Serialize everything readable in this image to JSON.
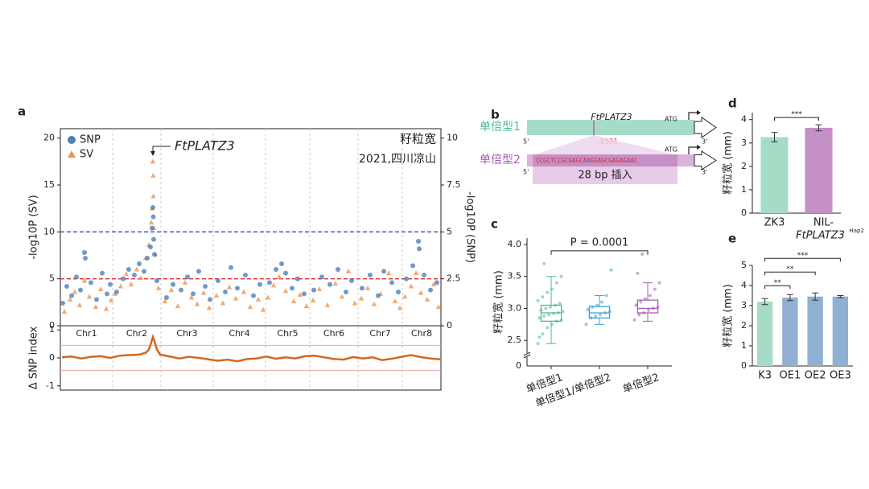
{
  "chart_data": [
    {
      "type": "scatter",
      "panel_label": "a",
      "ylabel": "-log10P (SV)",
      "y2label": "-log10P (SNP)",
      "title": "籽粒宽",
      "subtitle": "2021,四川凉山",
      "annotation": "FtPLATZ3",
      "legend": "upper left",
      "xlim": [
        0,
        473
      ],
      "ylim": [
        0,
        21
      ],
      "yticks": [
        0,
        5,
        10,
        15,
        20
      ],
      "y2lim": [
        0,
        10.5
      ],
      "y2ticks": [
        0,
        2.5,
        5,
        7.5,
        10
      ],
      "categories": [
        "Chr1",
        "Chr2",
        "Chr3",
        "Chr4",
        "Chr5",
        "Chr6",
        "Chr7",
        "Chr8"
      ],
      "category_bounds": [
        0,
        65,
        125,
        190,
        255,
        310,
        370,
        425,
        473
      ],
      "threshold_lines": [
        {
          "value": 10,
          "color": "#2f55a4"
        },
        {
          "value": 5,
          "color": "#e02a2a"
        }
      ],
      "series": [
        {
          "name": "SNP",
          "color": "#4f80bd",
          "marker": "circle",
          "axis": "y2",
          "x": [
            3,
            8,
            14,
            20,
            25,
            30,
            31,
            38,
            45,
            52,
            58,
            62,
            70,
            78,
            85,
            92,
            98,
            104,
            108,
            112,
            114,
            115,
            115.5,
            116,
            117,
            120,
            132,
            140,
            150,
            158,
            165,
            172,
            180,
            186,
            196,
            205,
            212,
            220,
            230,
            240,
            248,
            260,
            268,
            275,
            280,
            288,
            295,
            303,
            315,
            325,
            335,
            345,
            355,
            362,
            375,
            385,
            395,
            402,
            412,
            420,
            430,
            438,
            445,
            446,
            452,
            460,
            468
          ],
          "values": [
            1.2,
            2.1,
            1.6,
            2.6,
            1.9,
            3.9,
            3.6,
            2.3,
            1.4,
            2.8,
            1.7,
            2.2,
            1.8,
            2.5,
            3.0,
            2.7,
            3.3,
            2.9,
            3.6,
            4.2,
            5.2,
            6.3,
            5.8,
            4.6,
            3.8,
            2.4,
            1.5,
            2.2,
            1.9,
            2.6,
            1.7,
            2.9,
            2.1,
            1.4,
            2.4,
            1.8,
            3.1,
            2.0,
            2.7,
            1.6,
            2.2,
            2.3,
            3.0,
            3.3,
            2.8,
            2.0,
            2.5,
            1.7,
            1.9,
            2.6,
            2.2,
            3.0,
            1.8,
            2.4,
            2.0,
            2.7,
            1.6,
            2.9,
            2.3,
            1.8,
            2.5,
            3.2,
            4.5,
            4.1,
            2.7,
            1.9,
            2.3
          ]
        },
        {
          "name": "SV",
          "color": "#ee9552",
          "marker": "triangle",
          "x": [
            5,
            12,
            18,
            24,
            30,
            36,
            44,
            50,
            57,
            63,
            68,
            75,
            82,
            88,
            95,
            100,
            106,
            110,
            113,
            114,
            115,
            115.3,
            115.6,
            116,
            118,
            122,
            130,
            138,
            146,
            155,
            163,
            170,
            178,
            185,
            194,
            202,
            210,
            218,
            228,
            236,
            246,
            252,
            258,
            265,
            272,
            280,
            290,
            298,
            306,
            314,
            322,
            332,
            342,
            350,
            358,
            366,
            374,
            382,
            390,
            398,
            408,
            416,
            422,
            428,
            436,
            442,
            448,
            456,
            464,
            470
          ],
          "values": [
            1.5,
            2.8,
            3.6,
            2.2,
            4.8,
            3.1,
            2.0,
            3.9,
            1.8,
            2.7,
            3.4,
            4.2,
            5.5,
            4.4,
            6.0,
            5.1,
            7.2,
            8.6,
            11.0,
            12.5,
            17.5,
            16.0,
            13.8,
            10.4,
            7.6,
            4.0,
            2.6,
            3.8,
            2.1,
            4.6,
            3.0,
            2.3,
            3.5,
            1.9,
            3.2,
            2.4,
            4.1,
            2.9,
            3.6,
            2.0,
            2.8,
            1.7,
            3.0,
            4.3,
            5.2,
            3.7,
            2.6,
            3.3,
            2.1,
            2.7,
            3.9,
            2.2,
            4.5,
            3.1,
            5.8,
            2.4,
            2.9,
            4.0,
            2.3,
            3.4,
            5.6,
            2.6,
            1.9,
            3.1,
            4.2,
            5.6,
            3.5,
            2.8,
            4.4,
            2.0
          ]
        }
      ]
    },
    {
      "type": "line",
      "ylabel": "Δ SNP index",
      "color": "#d2691e",
      "xlim": [
        0,
        473
      ],
      "ylim": [
        -1.15,
        1.15
      ],
      "yticks": [
        -1,
        0,
        1
      ],
      "threshold_lines": [
        0.45,
        -0.45
      ],
      "x": [
        2,
        14,
        26,
        38,
        50,
        62,
        74,
        86,
        98,
        106,
        110,
        113,
        115,
        117,
        120,
        124,
        136,
        148,
        160,
        172,
        184,
        196,
        208,
        220,
        232,
        244,
        256,
        268,
        280,
        292,
        304,
        316,
        328,
        340,
        352,
        364,
        376,
        388,
        400,
        412,
        424,
        436,
        448,
        460,
        472
      ],
      "values": [
        0.02,
        0.05,
        -0.02,
        0.04,
        0.06,
        0.0,
        0.08,
        0.1,
        0.12,
        0.18,
        0.3,
        0.55,
        0.75,
        0.6,
        0.3,
        0.12,
        0.05,
        -0.02,
        0.04,
        0.0,
        -0.05,
        -0.1,
        -0.06,
        -0.12,
        -0.04,
        -0.02,
        0.05,
        -0.03,
        0.02,
        -0.02,
        0.06,
        0.08,
        0.02,
        -0.04,
        -0.06,
        0.03,
        -0.02,
        0.02,
        -0.08,
        -0.03,
        0.04,
        0.1,
        0.03,
        -0.02,
        -0.05
      ]
    },
    {
      "type": "box",
      "panel_label": "c",
      "ylabel": "籽粒宽 (mm)",
      "annotation": "P = 0.0001",
      "axis_break_label": "0",
      "ylim": [
        2.1,
        4.1
      ],
      "yticks": [
        2.5,
        {
          "value": 3,
          "label": "3.0"
        },
        3.5,
        {
          "value": 4,
          "label": "4.0"
        }
      ],
      "categories": [
        "单倍型1",
        "单倍型1/单倍型2",
        "单倍型2"
      ],
      "colors": [
        "#4dbb8f",
        "#35a4d6",
        "#a55cb5"
      ],
      "boxes": [
        {
          "min": 2.45,
          "q1": 2.8,
          "median": 2.93,
          "q3": 3.05,
          "max": 3.5,
          "points": [
            2.45,
            2.6,
            2.7,
            2.75,
            2.8,
            2.82,
            2.85,
            2.88,
            2.9,
            2.92,
            2.93,
            2.95,
            2.97,
            3.0,
            3.02,
            3.05,
            3.08,
            3.12,
            3.18,
            3.25,
            3.3,
            3.4,
            3.5,
            2.55,
            3.7
          ]
        },
        {
          "min": 2.75,
          "q1": 2.85,
          "median": 2.93,
          "q3": 3.03,
          "max": 3.2,
          "points": [
            2.75,
            2.85,
            2.88,
            2.9,
            2.93,
            2.95,
            2.98,
            3.02,
            3.05,
            3.1,
            3.2,
            3.6
          ]
        },
        {
          "min": 2.8,
          "q1": 2.93,
          "median": 3.0,
          "q3": 3.13,
          "max": 3.4,
          "points": [
            2.82,
            2.9,
            2.93,
            2.97,
            3.0,
            3.02,
            3.05,
            3.1,
            3.15,
            3.2,
            3.3,
            3.4,
            3.55,
            3.85
          ]
        }
      ]
    },
    {
      "type": "bar",
      "panel_label": "d",
      "ylabel": "籽粒宽 (mm)",
      "categories": [
        "ZK3",
        [
          "NIL-",
          "FtPLATZ3",
          "Hap2"
        ]
      ],
      "values": [
        3.25,
        3.65
      ],
      "errors": [
        0.2,
        0.13
      ],
      "colors": [
        "#a6dcc6",
        "#c58fc7"
      ],
      "ylim": [
        0,
        4.3
      ],
      "yticks": [
        0,
        1,
        2,
        3,
        4
      ],
      "comparisons": [
        {
          "between": [
            "ZK3",
            "NIL-"
          ],
          "label": "***"
        }
      ]
    },
    {
      "type": "bar",
      "panel_label": "e",
      "ylabel": "籽粒宽 (mm)",
      "categories": [
        "K3",
        "OE1",
        "OE2",
        "OE3"
      ],
      "values": [
        3.2,
        3.4,
        3.45,
        3.45
      ],
      "errors": [
        0.15,
        0.15,
        0.18,
        0.05
      ],
      "colors": [
        "#a6dcc6",
        "#8fb0d2",
        "#8fb0d2",
        "#8fb0d2"
      ],
      "ylim": [
        0,
        5
      ],
      "yticks": [
        0,
        1,
        2,
        3,
        4,
        5
      ],
      "comparisons": [
        {
          "between": [
            "K3",
            "OE1"
          ],
          "label": "**"
        },
        {
          "between": [
            "K3",
            "OE2"
          ],
          "label": "**"
        },
        {
          "between": [
            "K3",
            "OE3"
          ],
          "label": "***"
        }
      ]
    }
  ],
  "diagram": {
    "panel_label": "b",
    "gene": "FtPLATZ3",
    "haplotypes": [
      "单倍型1",
      "单倍型2"
    ],
    "position": "-1501",
    "start_codon": "ATG",
    "five_prime": "5'",
    "three_prime": "3'",
    "insertion_sequence": "CCGCTCCGCGAGCAAGGAGCGAGAGAAC",
    "insertion_label": "28 bp 插入"
  }
}
